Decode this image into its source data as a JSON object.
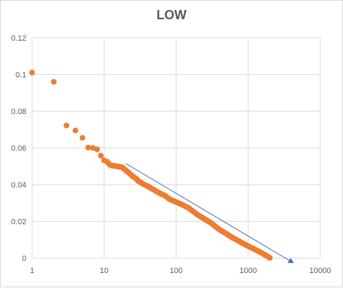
{
  "chart_data": {
    "type": "scatter",
    "title": "LOW",
    "xlabel": "",
    "ylabel": "",
    "x_scale": "log",
    "xlim": [
      1,
      10000
    ],
    "ylim": [
      0,
      0.12
    ],
    "grid": true,
    "legend": "none",
    "x_ticks": [
      "1",
      "10",
      "100",
      "1000",
      "10000"
    ],
    "y_ticks": [
      "0",
      "0.02",
      "0.04",
      "0.06",
      "0.08",
      "0.1",
      "0.12"
    ],
    "colors": {
      "points": "#ED7D31",
      "trendline": "#4472C4",
      "grid": "#d9d9d9",
      "text": "#595959"
    },
    "series": [
      {
        "x": [
          1,
          2,
          3,
          4,
          5,
          6,
          7,
          8,
          9,
          10,
          11,
          12,
          13,
          14,
          15,
          16,
          17,
          18,
          20,
          22,
          25,
          28,
          30,
          35,
          40,
          50,
          60,
          70,
          80,
          100,
          120,
          150,
          200,
          250,
          300,
          400,
          500,
          600,
          700,
          800,
          1000,
          1200,
          1500,
          1800,
          2000
        ],
        "y": [
          0.101,
          0.096,
          0.0722,
          0.0695,
          0.0655,
          0.0602,
          0.06,
          0.0592,
          0.0558,
          0.0532,
          0.0525,
          0.0508,
          0.0503,
          0.0502,
          0.05,
          0.0497,
          0.0496,
          0.0494,
          0.0478,
          0.0465,
          0.0445,
          0.0432,
          0.0419,
          0.0403,
          0.0392,
          0.037,
          0.0352,
          0.034,
          0.0322,
          0.0305,
          0.0292,
          0.0272,
          0.0235,
          0.0212,
          0.0193,
          0.0155,
          0.0132,
          0.0112,
          0.0098,
          0.0085,
          0.0065,
          0.005,
          0.003,
          0.0013,
          0.0001
        ]
      }
    ],
    "trendline": {
      "x": [
        20,
        4000
      ],
      "y": [
        0.0515,
        -0.002
      ]
    }
  }
}
